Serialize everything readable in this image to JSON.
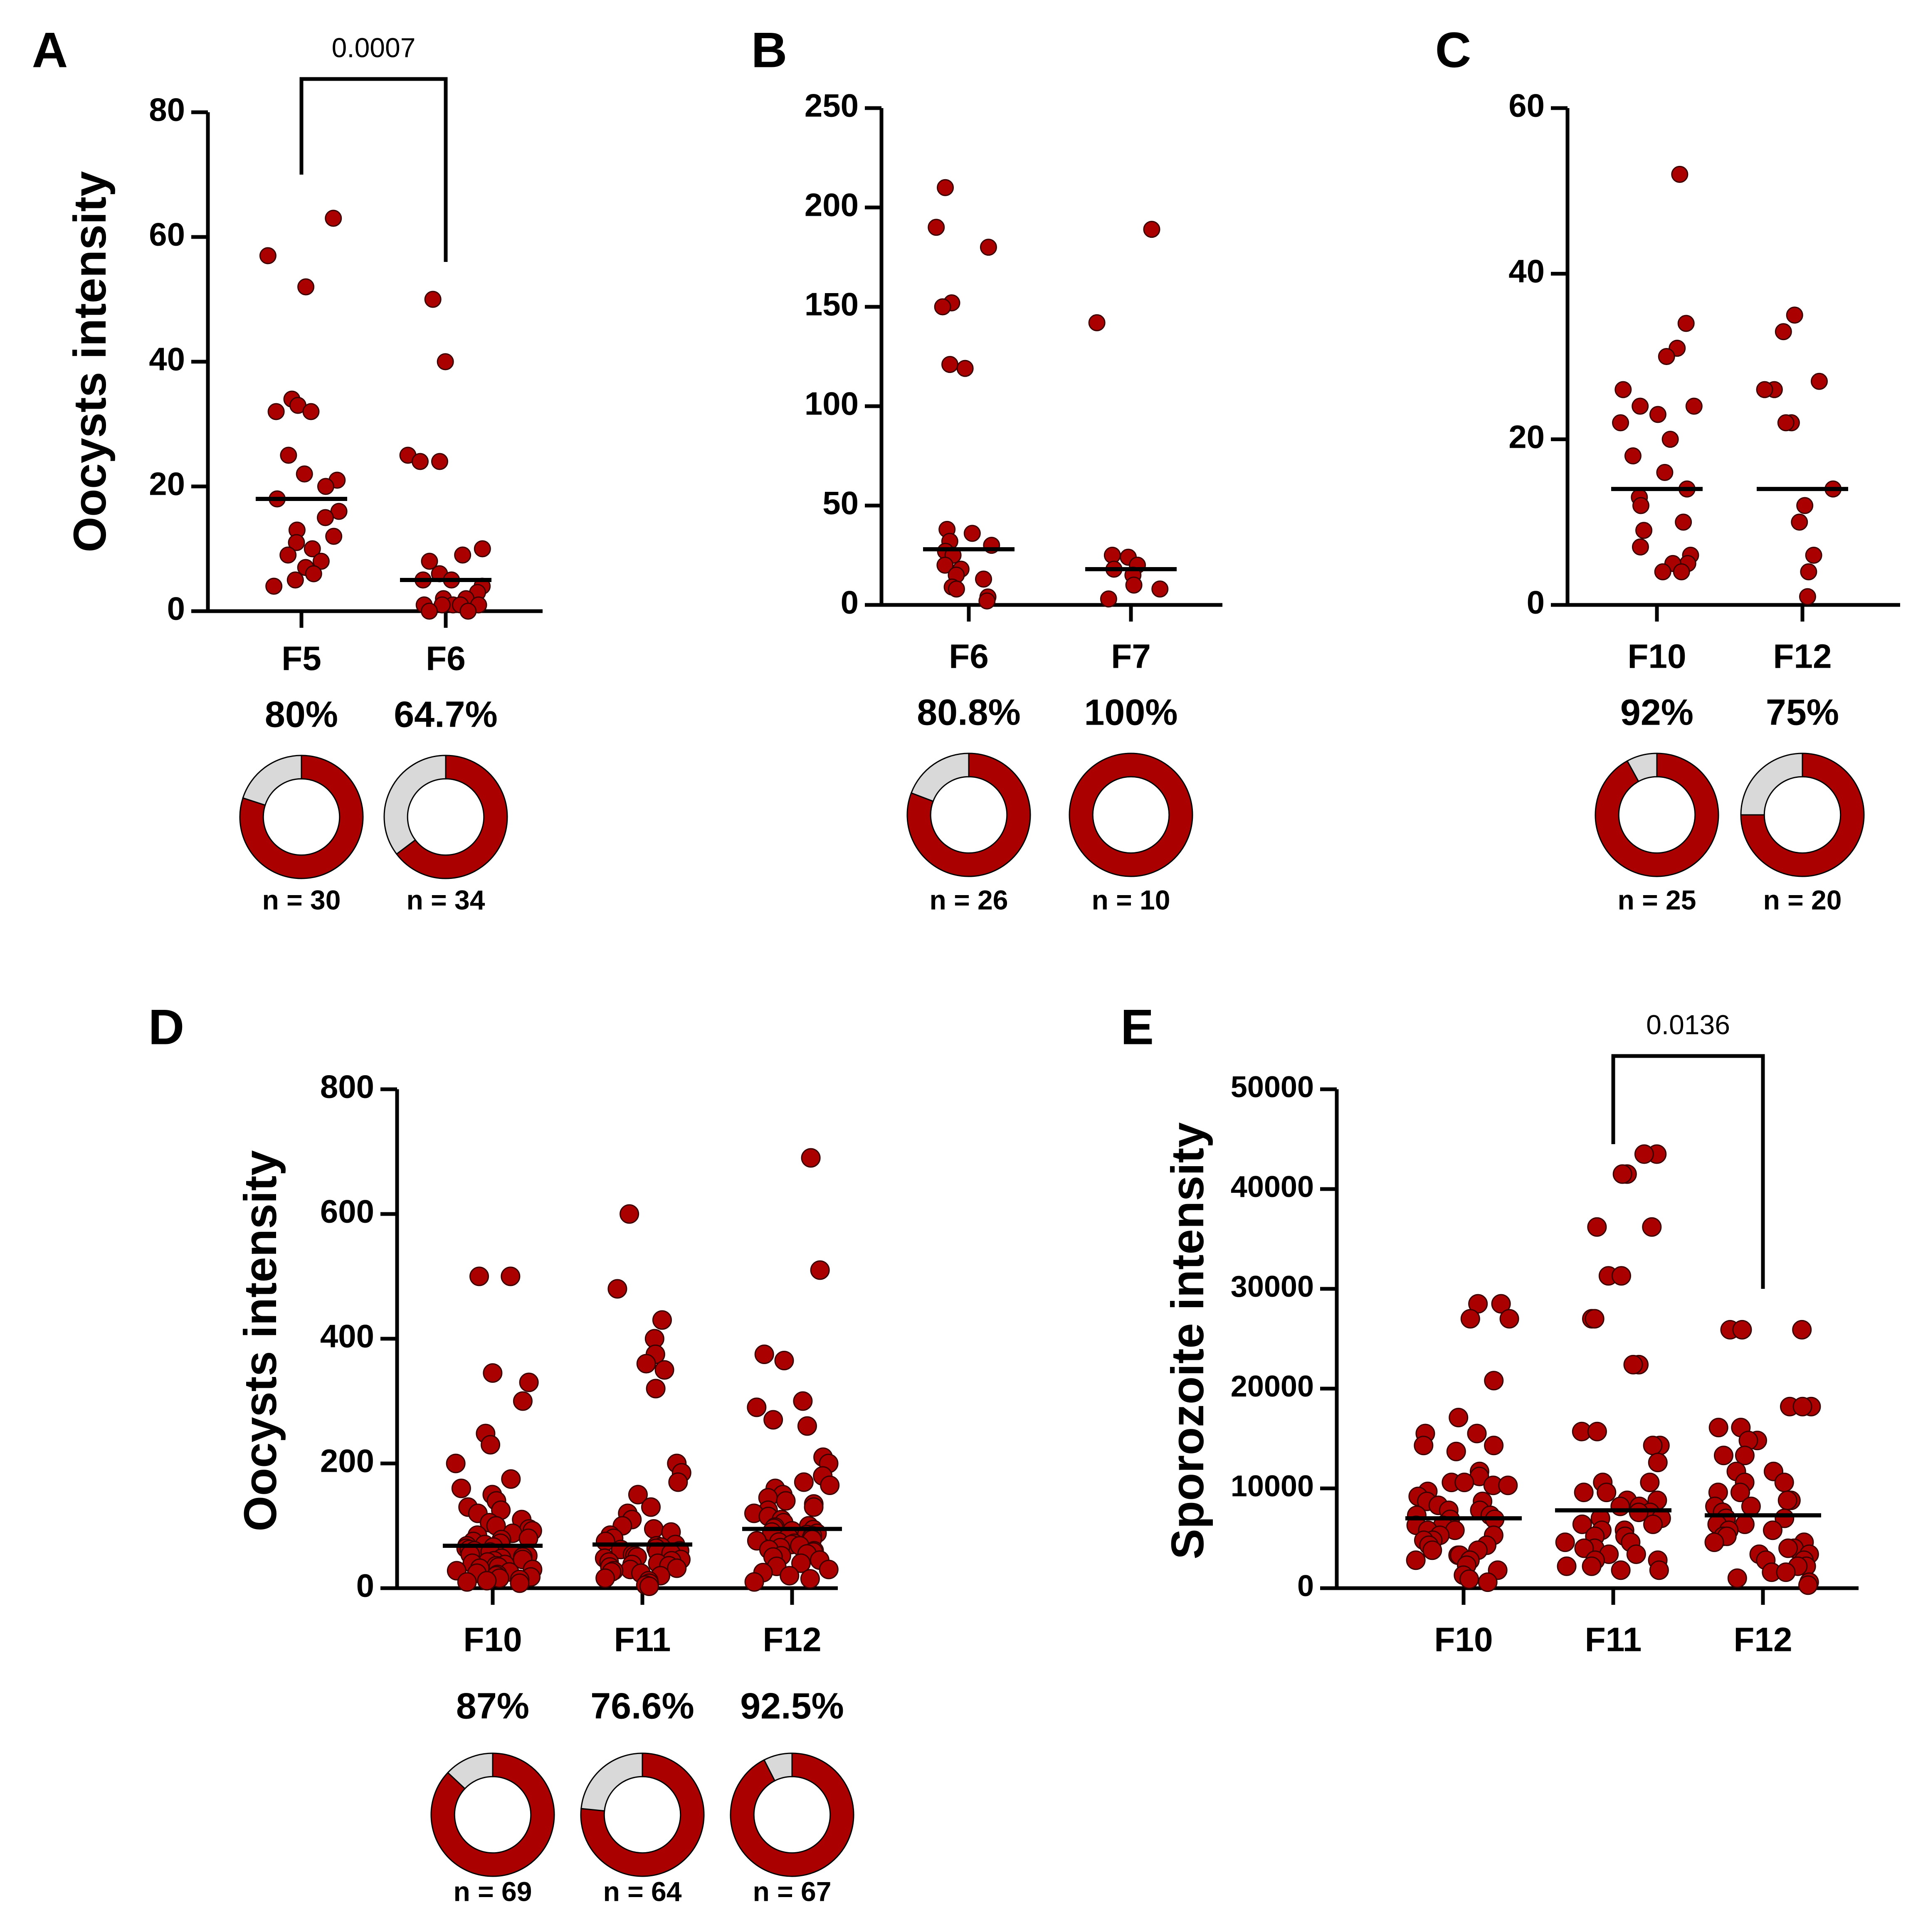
{
  "figure": {
    "colors": {
      "point": "#aa0000",
      "point_edge": "#3a0000",
      "axis": "#000000",
      "donut_rest": "#d9d9d9"
    }
  },
  "chart_data": [
    {
      "panel": "A",
      "type": "scatter",
      "ylabel": "Oocysts intensity",
      "ylim": [
        0,
        80
      ],
      "yticks": [
        0,
        20,
        40,
        60,
        80
      ],
      "categories": [
        "F5",
        "F6"
      ],
      "median": [
        18,
        5
      ],
      "groups": [
        [
          63,
          57,
          52,
          34,
          33,
          32,
          32,
          25,
          22,
          21,
          20,
          18,
          16,
          15,
          13,
          12,
          11,
          10,
          9,
          8,
          7,
          6,
          5,
          4
        ],
        [
          50,
          40,
          25,
          24,
          24,
          10,
          9,
          8,
          6,
          5,
          5,
          4,
          3,
          2,
          2,
          1,
          1,
          1,
          1,
          1,
          0,
          0
        ]
      ],
      "significance": [
        {
          "from": 0,
          "to": 1,
          "label": "0.0007"
        }
      ],
      "prevalence": [
        {
          "percent_label": "80%",
          "fraction": 0.8,
          "n_label": "n = 30"
        },
        {
          "percent_label": "64.7%",
          "fraction": 0.647,
          "n_label": "n = 34"
        }
      ]
    },
    {
      "panel": "B",
      "type": "scatter",
      "ylabel": "",
      "ylim": [
        0,
        250
      ],
      "yticks": [
        0,
        50,
        100,
        150,
        200,
        250
      ],
      "categories": [
        "F6",
        "F7"
      ],
      "median": [
        28,
        18
      ],
      "groups": [
        [
          210,
          190,
          180,
          152,
          150,
          121,
          119,
          38,
          36,
          32,
          30,
          27,
          25,
          20,
          18,
          15,
          13,
          9,
          8,
          4,
          2
        ],
        [
          189,
          142,
          25,
          24,
          20,
          18,
          15,
          10,
          8,
          3
        ]
      ],
      "significance": [],
      "prevalence": [
        {
          "percent_label": "80.8%",
          "fraction": 0.808,
          "n_label": "n = 26"
        },
        {
          "percent_label": "100%",
          "fraction": 1.0,
          "n_label": "n = 10"
        }
      ]
    },
    {
      "panel": "C",
      "type": "scatter",
      "ylabel": "",
      "ylim": [
        0,
        60
      ],
      "yticks": [
        0,
        20,
        40,
        60
      ],
      "categories": [
        "F10",
        "F12"
      ],
      "median": [
        14,
        14
      ],
      "groups": [
        [
          52,
          34,
          31,
          30,
          26,
          24,
          24,
          23,
          22,
          20,
          18,
          16,
          14,
          13,
          12,
          10,
          9,
          7,
          6,
          5,
          5,
          4,
          4
        ],
        [
          35,
          33,
          27,
          26,
          26,
          22,
          22,
          14,
          12,
          10,
          6,
          4,
          1
        ]
      ],
      "significance": [],
      "prevalence": [
        {
          "percent_label": "92%",
          "fraction": 0.92,
          "n_label": "n = 25"
        },
        {
          "percent_label": "75%",
          "fraction": 0.75,
          "n_label": "n = 20"
        }
      ]
    },
    {
      "panel": "D",
      "type": "scatter",
      "ylabel": "Oocysts intensity",
      "ylim": [
        0,
        800
      ],
      "yticks": [
        0,
        200,
        400,
        600,
        800
      ],
      "categories": [
        "F10",
        "F11",
        "F12"
      ],
      "median": [
        68,
        70,
        95
      ],
      "groups": [
        [
          500,
          500,
          345,
          330,
          300,
          248,
          230,
          200,
          175,
          160,
          150,
          140,
          130,
          125,
          120,
          110,
          105,
          100,
          95,
          92,
          88,
          85,
          80,
          78,
          75,
          72,
          70,
          68,
          66,
          64,
          62,
          60,
          58,
          56,
          54,
          52,
          50,
          48,
          46,
          44,
          42,
          40,
          38,
          36,
          34,
          32,
          30,
          28,
          26,
          24,
          22,
          20,
          18,
          16,
          14,
          12,
          10,
          8
        ],
        [
          600,
          480,
          430,
          400,
          375,
          360,
          350,
          320,
          200,
          185,
          170,
          150,
          130,
          120,
          110,
          100,
          95,
          90,
          85,
          80,
          75,
          70,
          68,
          66,
          64,
          62,
          60,
          58,
          56,
          54,
          52,
          50,
          48,
          46,
          44,
          42,
          40,
          38,
          36,
          34,
          32,
          30,
          28,
          26,
          24,
          20,
          16,
          12,
          8,
          5,
          3
        ],
        [
          690,
          510,
          375,
          365,
          300,
          290,
          270,
          260,
          210,
          200,
          180,
          170,
          165,
          160,
          150,
          145,
          140,
          135,
          130,
          125,
          120,
          115,
          110,
          105,
          100,
          98,
          96,
          94,
          92,
          90,
          88,
          86,
          84,
          82,
          80,
          78,
          76,
          74,
          72,
          70,
          68,
          65,
          62,
          60,
          58,
          55,
          52,
          50,
          45,
          40,
          35,
          30,
          25,
          20,
          15,
          10
        ]
      ],
      "significance": [],
      "prevalence": [
        {
          "percent_label": "87%",
          "fraction": 0.87,
          "n_label": "n = 69"
        },
        {
          "percent_label": "76.6%",
          "fraction": 0.766,
          "n_label": "n = 64"
        },
        {
          "percent_label": "92.5%",
          "fraction": 0.925,
          "n_label": "n = 67"
        }
      ]
    },
    {
      "panel": "E",
      "type": "scatter",
      "ylabel": "Sporozoite intensity",
      "ylim": [
        0,
        50000
      ],
      "yticks": [
        0,
        10000,
        20000,
        30000,
        40000,
        50000
      ],
      "categories": [
        "F10",
        "F11",
        "F12"
      ],
      "median": [
        7000,
        7800,
        7300
      ],
      "groups": [
        [
          28500,
          28500,
          27000,
          27000,
          20800,
          17100,
          15500,
          15500,
          14300,
          14300,
          13700,
          11700,
          11200,
          10600,
          10600,
          10300,
          10300,
          9700,
          9200,
          8700,
          8700,
          8300,
          7800,
          7800,
          7300,
          7300,
          6900,
          6900,
          6300,
          6300,
          5800,
          5800,
          5300,
          5300,
          4800,
          4800,
          4300,
          4300,
          3800,
          3800,
          3300,
          3300,
          2800,
          2800,
          2300,
          1800,
          1300,
          900,
          600
        ],
        [
          43500,
          43500,
          41500,
          41500,
          36200,
          36200,
          31300,
          31300,
          27000,
          27000,
          22400,
          22400,
          15700,
          15700,
          14300,
          14300,
          12600,
          10600,
          10600,
          9600,
          9600,
          8800,
          8800,
          8200,
          8200,
          7600,
          7600,
          7000,
          7000,
          6400,
          6400,
          5800,
          5800,
          5200,
          5200,
          4600,
          4600,
          4000,
          4000,
          3400,
          3400,
          2800,
          2800,
          2200,
          2200,
          1800,
          1800
        ],
        [
          25900,
          25900,
          25900,
          18200,
          18200,
          18200,
          16100,
          16100,
          14800,
          14800,
          13300,
          13300,
          11700,
          11700,
          10600,
          10600,
          9600,
          9600,
          8800,
          8800,
          8200,
          8200,
          7600,
          7600,
          7000,
          7000,
          6400,
          6400,
          5800,
          5800,
          5200,
          5200,
          4600,
          4600,
          4000,
          4000,
          3400,
          3400,
          2800,
          2800,
          2200,
          2200,
          1600,
          1600,
          1000,
          600,
          300
        ]
      ],
      "significance": [
        {
          "from": 1,
          "to": 2,
          "label": "0.0136"
        }
      ],
      "prevalence": []
    }
  ]
}
